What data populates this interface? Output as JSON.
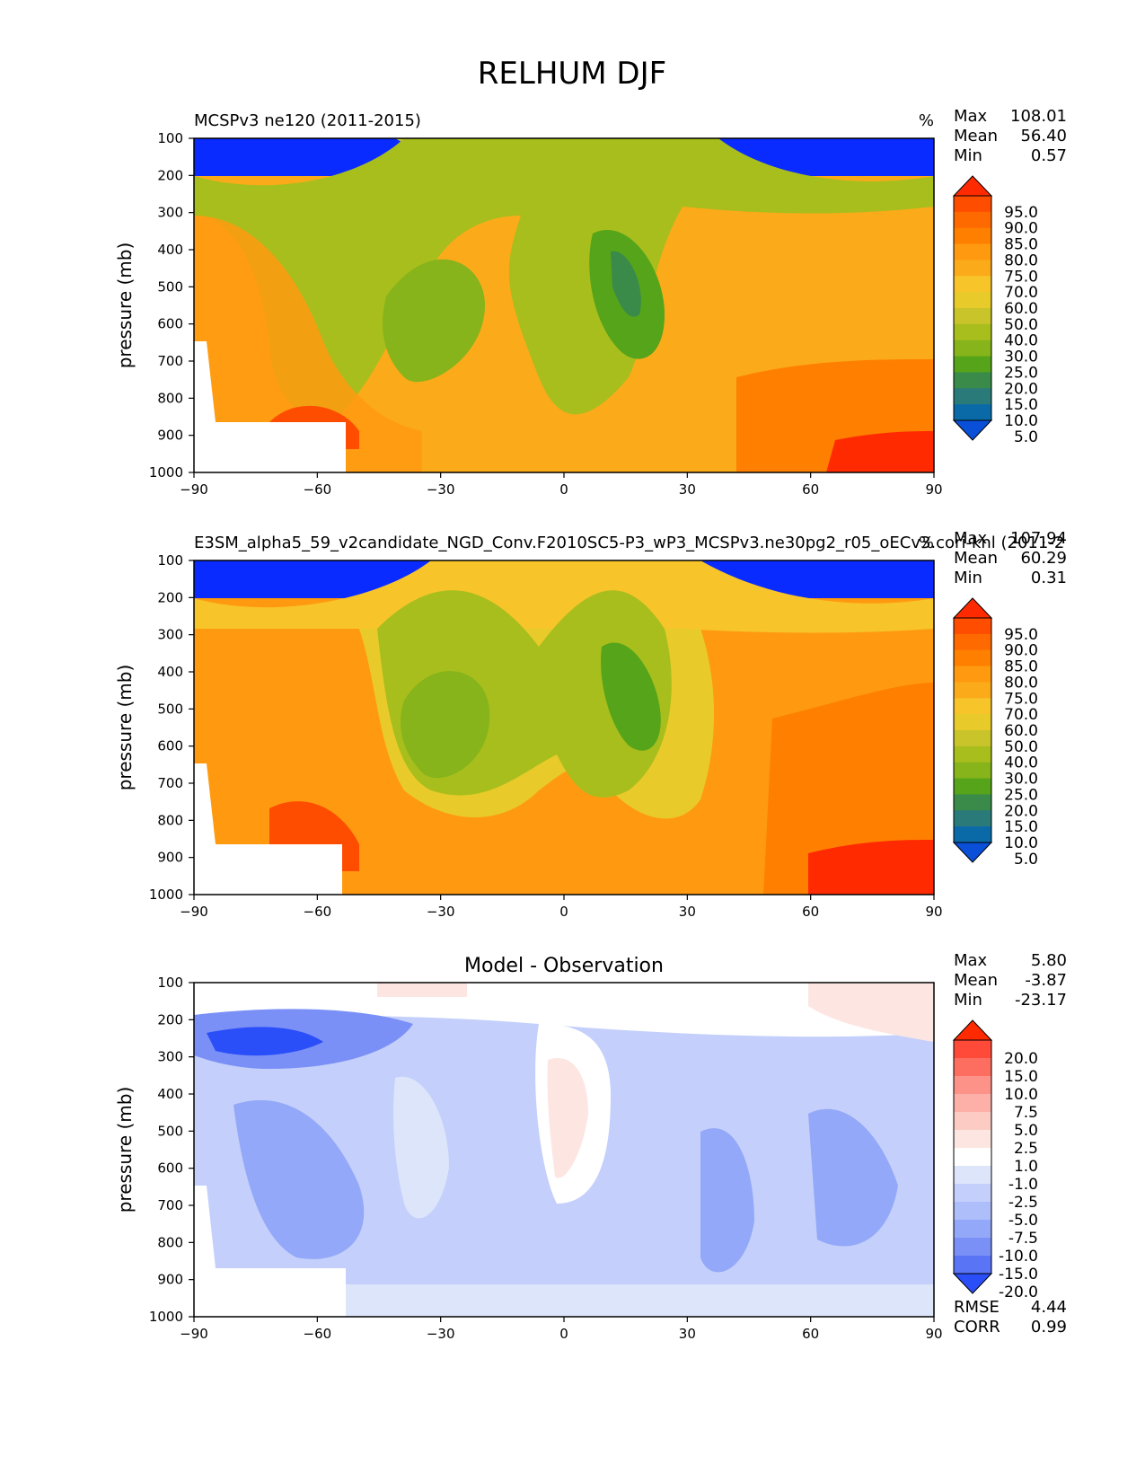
{
  "figure": {
    "title": "RELHUM DJF"
  },
  "chart_data": [
    {
      "type": "heatmap",
      "subtitle_left": "MCSPv3 ne120 (2011-2015)",
      "units": "%",
      "ylabel": "pressure (mb)",
      "x_ticks": [
        "−90",
        "−60",
        "−30",
        "0",
        "30",
        "60",
        "90"
      ],
      "y_ticks": [
        "100",
        "200",
        "300",
        "400",
        "500",
        "600",
        "700",
        "800",
        "900",
        "1000"
      ],
      "xlim": [
        -90,
        90
      ],
      "ylim": [
        1000,
        100
      ],
      "stats": {
        "Max": "108.01",
        "Mean": "56.40",
        "Min": "0.57"
      },
      "colorbar_labels": [
        "95.0",
        "90.0",
        "85.0",
        "80.0",
        "75.0",
        "70.0",
        "60.0",
        "50.0",
        "40.0",
        "30.0",
        "25.0",
        "20.0",
        "15.0",
        "10.0",
        "5.0"
      ],
      "colorbar_colors": [
        "#ff2a00",
        "#ff4d00",
        "#ff6a00",
        "#ff8000",
        "#ff9a10",
        "#fbaa1a",
        "#f7c42a",
        "#e8cb2a",
        "#c8c42a",
        "#a8be1c",
        "#86b41a",
        "#56a41a",
        "#3a8a4a",
        "#2a7a7a",
        "#0a6aa8",
        "#0a4fd8"
      ]
    },
    {
      "type": "heatmap",
      "subtitle_left": "E3SM_alpha5_59_v2candidate_NGD_Conv.F2010SC5-P3_wP3_MCSPv3.ne30pg2_r05_oECv3.cori-knl (2011-2",
      "units": "%",
      "ylabel": "pressure (mb)",
      "x_ticks": [
        "−90",
        "−60",
        "−30",
        "0",
        "30",
        "60",
        "90"
      ],
      "y_ticks": [
        "100",
        "200",
        "300",
        "400",
        "500",
        "600",
        "700",
        "800",
        "900",
        "1000"
      ],
      "xlim": [
        -90,
        90
      ],
      "ylim": [
        1000,
        100
      ],
      "stats": {
        "Max": "107.94",
        "Mean": "60.29",
        "Min": "0.31"
      },
      "colorbar_labels": [
        "95.0",
        "90.0",
        "85.0",
        "80.0",
        "75.0",
        "70.0",
        "60.0",
        "50.0",
        "40.0",
        "30.0",
        "25.0",
        "20.0",
        "15.0",
        "10.0",
        "5.0"
      ],
      "colorbar_colors": [
        "#ff2a00",
        "#ff4d00",
        "#ff6a00",
        "#ff8000",
        "#ff9a10",
        "#fbaa1a",
        "#f7c42a",
        "#e8cb2a",
        "#c8c42a",
        "#a8be1c",
        "#86b41a",
        "#56a41a",
        "#3a8a4a",
        "#2a7a7a",
        "#0a6aa8",
        "#0a4fd8"
      ]
    },
    {
      "type": "heatmap",
      "title": "Model - Observation",
      "ylabel": "pressure (mb)",
      "x_ticks": [
        "−90",
        "−60",
        "−30",
        "0",
        "30",
        "60",
        "90"
      ],
      "y_ticks": [
        "100",
        "200",
        "300",
        "400",
        "500",
        "600",
        "700",
        "800",
        "900",
        "1000"
      ],
      "xlim": [
        -90,
        90
      ],
      "ylim": [
        1000,
        100
      ],
      "stats": {
        "Max": "5.80",
        "Mean": "-3.87",
        "Min": "-23.17"
      },
      "colorbar_labels": [
        "20.0",
        "15.0",
        "10.0",
        "7.5",
        "5.0",
        "2.5",
        "1.0",
        "-1.0",
        "-2.5",
        "-5.0",
        "-7.5",
        "-10.0",
        "-15.0",
        "-20.0"
      ],
      "colorbar_colors": [
        "#ff2a00",
        "#ff4a3a",
        "#fe6e60",
        "#fd9288",
        "#fcb0a8",
        "#fcccc4",
        "#fde6e2",
        "#ffffff",
        "#dde5fb",
        "#c4d0fb",
        "#aebefa",
        "#93a8f8",
        "#7a90f6",
        "#5a74f6",
        "#2a4ef8"
      ],
      "footer_stats": {
        "RMSE": "4.44",
        "CORR": "0.99"
      }
    }
  ]
}
